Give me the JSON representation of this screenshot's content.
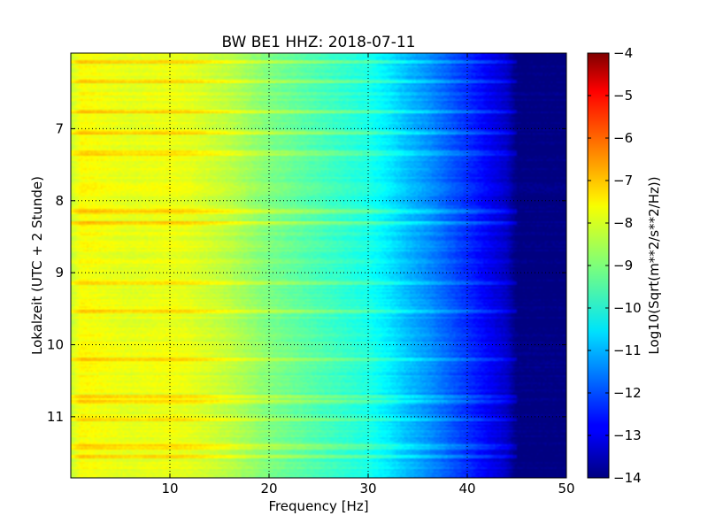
{
  "chart_data": {
    "type": "heatmap",
    "title": "BW BE1 HHZ: 2018-07-11",
    "xlabel": "Frequency [Hz]",
    "ylabel": "Lokalzeit (UTC + 2 Stunde)",
    "xlim": [
      0,
      50
    ],
    "ylim": [
      5.95,
      11.85
    ],
    "y_inverted": true,
    "x_ticks": [
      10,
      20,
      30,
      40,
      50
    ],
    "x_tick_labels": [
      "10",
      "20",
      "30",
      "40",
      "50"
    ],
    "y_ticks": [
      7,
      8,
      9,
      10,
      11
    ],
    "y_tick_labels": [
      "7",
      "8",
      "9",
      "10",
      "11"
    ],
    "grid": true,
    "colormap": "jet",
    "colorbar": {
      "label": "Log10(Sqrt(m**2/s**2/Hz))",
      "range": [
        -14,
        -4
      ],
      "ticks": [
        -4,
        -5,
        -6,
        -7,
        -8,
        -9,
        -10,
        -11,
        -12,
        -13,
        -14
      ],
      "tick_labels": [
        "−4",
        "−5",
        "−6",
        "−7",
        "−8",
        "−9",
        "−10",
        "−11",
        "−12",
        "−13",
        "−14"
      ]
    },
    "spectrum_profile": {
      "frequency_hz": [
        0,
        1,
        2,
        4,
        6,
        8,
        10,
        12,
        14,
        16,
        18,
        20,
        22,
        24,
        26,
        28,
        30,
        32,
        34,
        36,
        38,
        40,
        42,
        44,
        45,
        46,
        48,
        50
      ],
      "value": [
        -8.3,
        -7.75,
        -7.8,
        -7.9,
        -8.0,
        -7.95,
        -7.9,
        -8.0,
        -8.2,
        -8.4,
        -8.7,
        -9.0,
        -9.2,
        -9.4,
        -9.6,
        -9.8,
        -10.0,
        -10.4,
        -10.9,
        -11.3,
        -11.8,
        -12.3,
        -12.8,
        -13.3,
        -14.0,
        -14.0,
        -14.0,
        -14.0
      ]
    },
    "bright_bands_hours": [
      6.07,
      6.35,
      6.75,
      7.05,
      7.32,
      7.35,
      8.15,
      8.3,
      9.15,
      9.55,
      10.2,
      10.72,
      10.8,
      11.05,
      11.42,
      11.55
    ]
  }
}
